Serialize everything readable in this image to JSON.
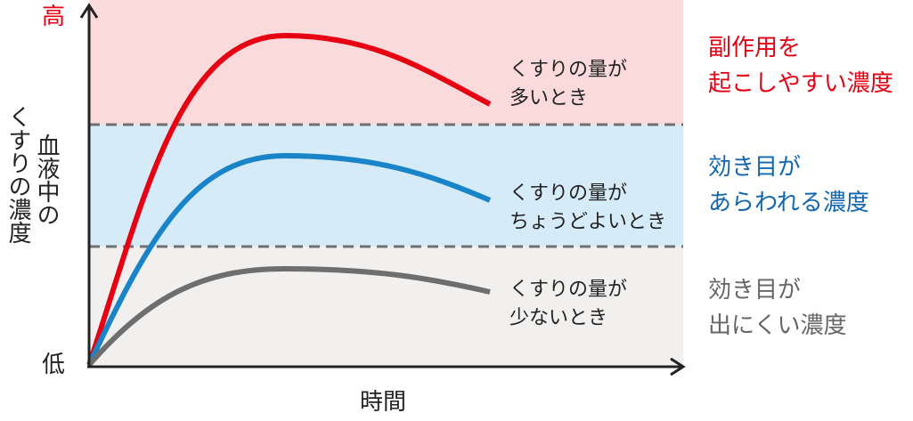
{
  "axes": {
    "y_high": "高",
    "y_low": "低",
    "y_label": [
      "血液中の",
      "くすりの濃度"
    ],
    "x_label": "時間"
  },
  "curves": [
    {
      "label": [
        "くすりの量が",
        "多いとき"
      ]
    },
    {
      "label": [
        "くすりの量が",
        "ちょうどよいとき"
      ]
    },
    {
      "label": [
        "くすりの量が",
        "少ないとき"
      ]
    }
  ],
  "zones": [
    {
      "label": [
        "副作用を",
        "起こしやすい濃度"
      ]
    },
    {
      "label": [
        "効き目が",
        "あらわれる濃度"
      ]
    },
    {
      "label": [
        "効き目が",
        "出にくい濃度"
      ]
    }
  ]
}
